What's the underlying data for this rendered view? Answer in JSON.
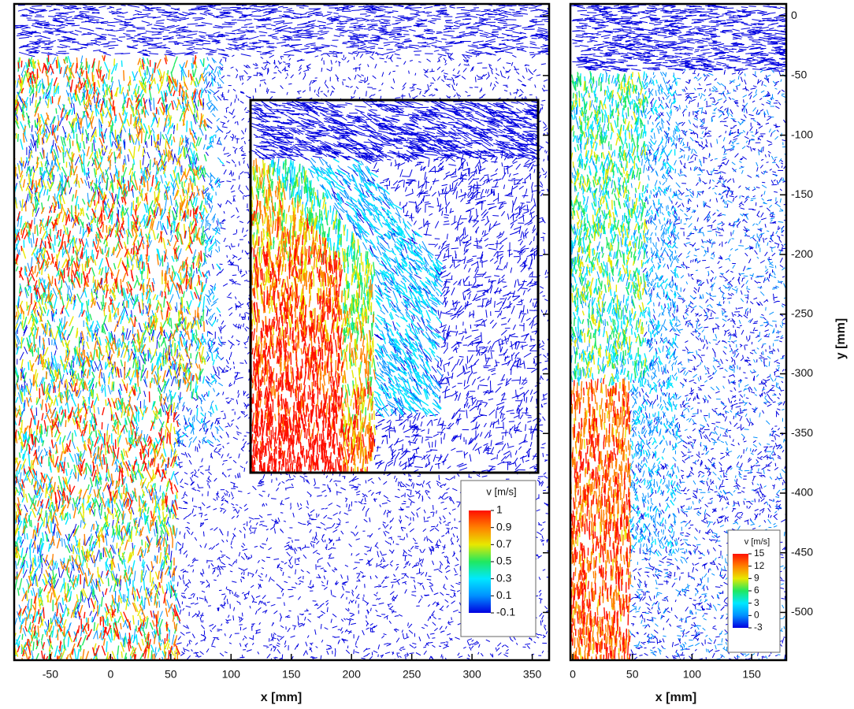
{
  "chart_data": [
    {
      "type": "vector-field",
      "xlabel": "x [mm]",
      "xlim": [
        -80,
        364
      ],
      "xticks": [
        -50,
        0,
        50,
        100,
        150,
        200,
        250,
        300,
        350
      ],
      "ylim": [
        -540,
        10
      ],
      "colorbar": {
        "title": "v [m/s]",
        "ticks": [
          1,
          0.9,
          0.7,
          0.5,
          0.3,
          0.1,
          -0.1
        ]
      }
    },
    {
      "type": "vector-field",
      "xlabel": "x [mm]",
      "ylabel": "y [mm]",
      "xlim": [
        -2,
        179
      ],
      "xticks": [
        0,
        50,
        100,
        150
      ],
      "ylim": [
        -540,
        10
      ],
      "yticks": [
        0,
        -50,
        -100,
        -150,
        -200,
        -250,
        -300,
        -350,
        -400,
        -450,
        -500
      ],
      "colorbar": {
        "title": "v [m/s]",
        "ticks": [
          15,
          12,
          9,
          6,
          3,
          0,
          -3
        ]
      }
    }
  ],
  "colormap": [
    "#0000e0",
    "#0090ff",
    "#00e8ff",
    "#20e860",
    "#e8e800",
    "#ff8000",
    "#ff1000"
  ]
}
